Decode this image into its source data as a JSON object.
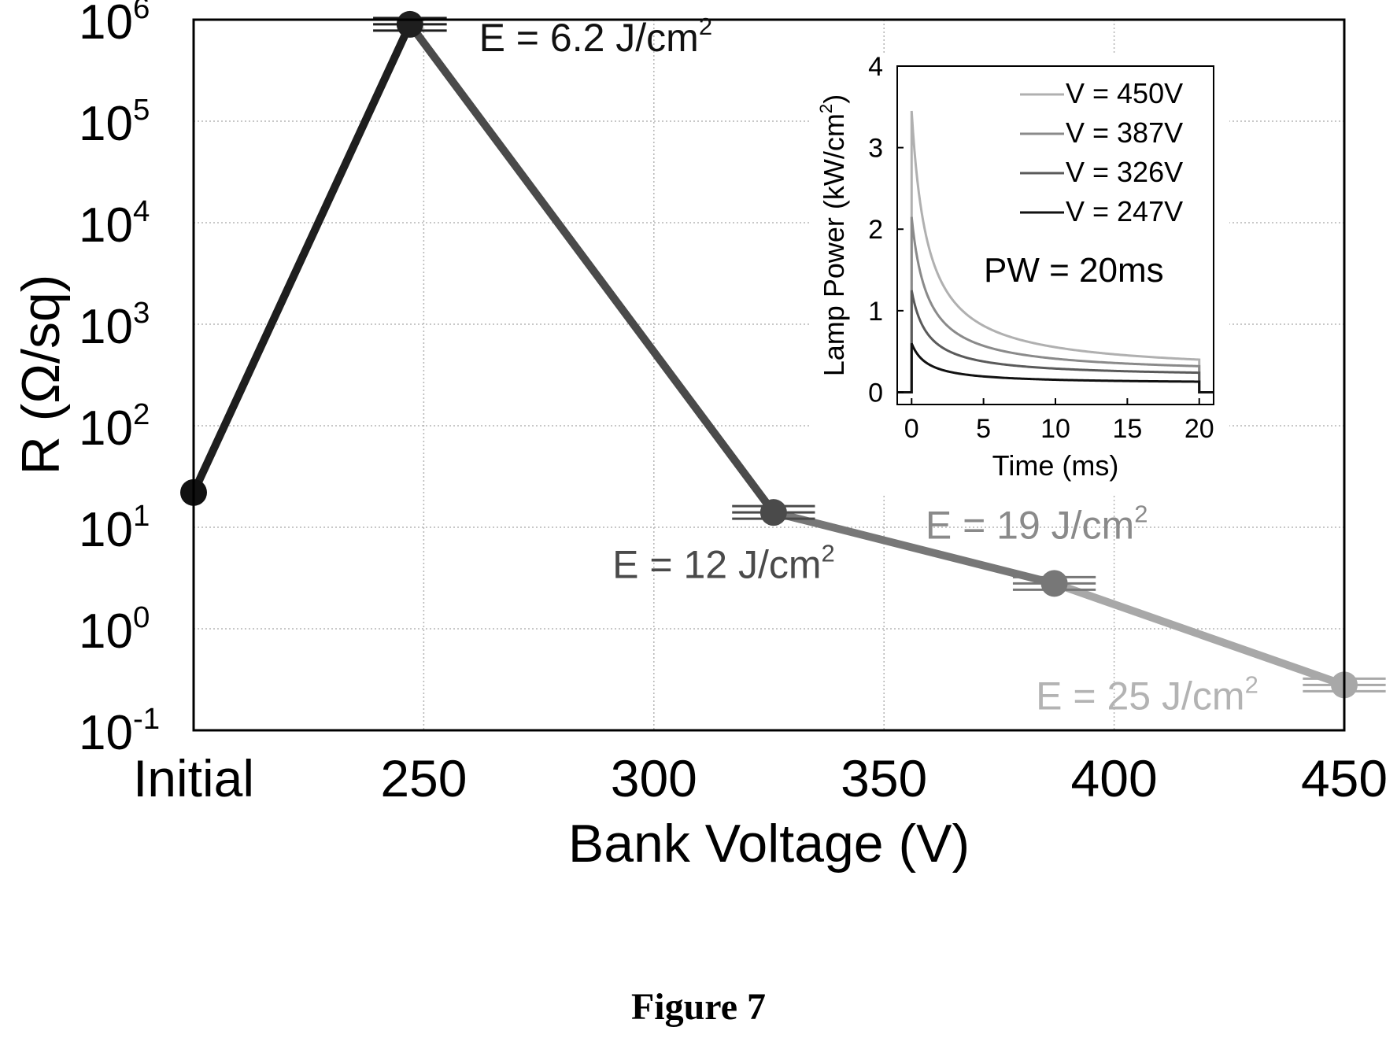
{
  "figure_caption": "Figure 7",
  "chart_data": [
    {
      "type": "line",
      "xlabel": "Bank Voltage (V)",
      "ylabel": "R (Ω/sq)",
      "y_scale": "log",
      "xlim": [
        200,
        450
      ],
      "ylim_exponents": [
        -1,
        6
      ],
      "x_ticks": [
        {
          "value": 200,
          "label": "Initial"
        },
        {
          "value": 250,
          "label": "250"
        },
        {
          "value": 300,
          "label": "300"
        },
        {
          "value": 350,
          "label": "350"
        },
        {
          "value": 400,
          "label": "400"
        },
        {
          "value": 450,
          "label": "450"
        }
      ],
      "y_ticks": [
        {
          "exp": -1,
          "label": "10",
          "sup": "-1"
        },
        {
          "exp": 0,
          "label": "10",
          "sup": "0"
        },
        {
          "exp": 1,
          "label": "10",
          "sup": "1"
        },
        {
          "exp": 2,
          "label": "10",
          "sup": "2"
        },
        {
          "exp": 3,
          "label": "10",
          "sup": "3"
        },
        {
          "exp": 4,
          "label": "10",
          "sup": "4"
        },
        {
          "exp": 5,
          "label": "10",
          "sup": "5"
        },
        {
          "exp": 6,
          "label": "10",
          "sup": "6"
        }
      ],
      "grid": true,
      "points": [
        {
          "x": 200,
          "y": 22,
          "x_err": 0,
          "color": "#111111"
        },
        {
          "x": 247,
          "y": 900000,
          "x_err": 8,
          "color": "#1e1e1e"
        },
        {
          "x": 326,
          "y": 14,
          "x_err": 9,
          "color": "#4a4a4a"
        },
        {
          "x": 387,
          "y": 2.8,
          "x_err": 9,
          "color": "#777777"
        },
        {
          "x": 450,
          "y": 0.28,
          "x_err": 9,
          "color": "#a8a8a8"
        }
      ],
      "annotations": [
        {
          "text": "E = 6.2 J/cm",
          "sup": "2",
          "x": 262,
          "y": 700000,
          "color": "#111111"
        },
        {
          "text": "E = 12 J/cm",
          "sup": "2",
          "x": 291,
          "y": 4.5,
          "color": "#4a4a4a"
        },
        {
          "text": "E = 19 J/cm",
          "sup": "2",
          "x": 359,
          "y": 11,
          "color": "#8a8a8a"
        },
        {
          "text": "E = 25 J/cm",
          "sup": "2",
          "x": 383,
          "y": 0.23,
          "color": "#b3b3b3"
        }
      ]
    },
    {
      "type": "line",
      "xlabel": "Time (ms)",
      "ylabel": "Lamp Power (kW/cm",
      "ylabel_sup": "2",
      "ylabel_end": ")",
      "xlim": [
        -1,
        21
      ],
      "ylim": [
        -0.15,
        4
      ],
      "x_ticks": [
        0,
        5,
        10,
        15,
        20
      ],
      "y_ticks": [
        0,
        1,
        2,
        3,
        4
      ],
      "grid": false,
      "annotation": "PW = 20ms",
      "pulse_start_ms": 0,
      "pulse_end_ms": 20,
      "series": [
        {
          "name": "V = 450V",
          "color": "#b0b0b0",
          "peak": 3.45,
          "end": 0.4
        },
        {
          "name": "V = 387V",
          "color": "#8a8a8a",
          "peak": 2.15,
          "end": 0.32
        },
        {
          "name": "V = 326V",
          "color": "#5a5a5a",
          "peak": 1.25,
          "end": 0.24
        },
        {
          "name": "V = 247V",
          "color": "#111111",
          "peak": 0.6,
          "end": 0.13
        }
      ]
    }
  ]
}
